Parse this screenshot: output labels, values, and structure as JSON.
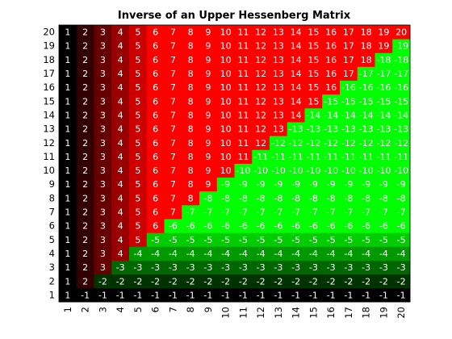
{
  "chart_data": {
    "type": "heatmap",
    "title": "Inverse of an Upper Hessenberg Matrix",
    "xlabel": "",
    "ylabel": "",
    "x_ticks": [
      "1",
      "2",
      "3",
      "4",
      "5",
      "6",
      "7",
      "8",
      "9",
      "10",
      "11",
      "12",
      "13",
      "14",
      "15",
      "16",
      "17",
      "18",
      "19",
      "20"
    ],
    "y_ticks": [
      "1",
      "2",
      "3",
      "4",
      "5",
      "6",
      "7",
      "8",
      "9",
      "10",
      "11",
      "12",
      "13",
      "14",
      "15",
      "16",
      "17",
      "18",
      "19",
      "20"
    ],
    "y_direction": "bottom-to-top",
    "rule": "value(row, col) = col if col <= row, otherwise -row",
    "size": 20,
    "colors": {
      "positive_dark": "#000000",
      "positive_bright": "#ff0000",
      "negative_dark": "#000000",
      "negative_bright": "#00ff00",
      "label_text": "#ffffff"
    },
    "grid": false,
    "colorbar": false
  }
}
